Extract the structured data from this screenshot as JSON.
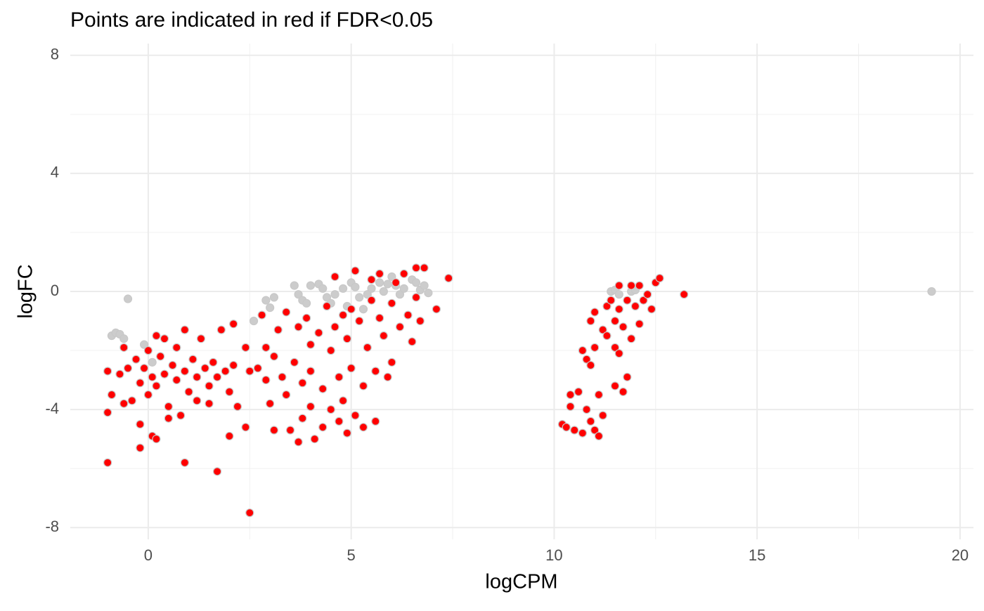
{
  "chart_data": {
    "type": "scatter",
    "title": "Points are indicated in red if FDR<0.05",
    "x_label": "logCPM",
    "y_label": "logFC",
    "xlim": [
      -1.92,
      20.33
    ],
    "ylim": [
      -8.4,
      8.4
    ],
    "xticks": [
      0,
      5,
      10,
      15,
      20
    ],
    "yticks": [
      8,
      4,
      0,
      -4,
      -8
    ],
    "x_minor_grid": [
      2.5,
      7.5,
      12.5,
      17.5
    ],
    "y_minor_grid": [
      6,
      2,
      -2,
      -6
    ],
    "grid": true,
    "series": [
      {
        "color": "#cccccc",
        "x": [
          -0.9,
          -0.8,
          -0.7,
          -0.5,
          -0.6,
          -0.1,
          0.1,
          2.6,
          2.9,
          3.1,
          3.0,
          3.6,
          3.7,
          3.8,
          3.9,
          4.0,
          4.2,
          4.3,
          4.4,
          4.5,
          4.6,
          4.8,
          5.0,
          5.1,
          5.2,
          5.4,
          5.5,
          5.7,
          5.8,
          5.9,
          6.0,
          6.1,
          6.2,
          6.3,
          6.5,
          6.6,
          6.7,
          6.8,
          6.9,
          11.4,
          11.5,
          11.6,
          11.9,
          12.0,
          19.3,
          4.9,
          5.3
        ],
        "values": [
          -1.5,
          -1.4,
          -1.45,
          -0.25,
          -1.6,
          -1.8,
          -2.4,
          -1.0,
          -0.3,
          -0.2,
          -0.55,
          0.2,
          -0.1,
          -0.3,
          -0.4,
          0.2,
          0.25,
          0.1,
          -0.2,
          -0.4,
          -0.1,
          0.1,
          0.3,
          0.15,
          -0.2,
          -0.1,
          0.1,
          0.3,
          0.0,
          0.25,
          0.5,
          0.2,
          -0.1,
          0.1,
          0.4,
          0.3,
          0.05,
          0.2,
          -0.05,
          0.0,
          0.05,
          -0.1,
          0.0,
          0.05,
          0.0,
          -0.5,
          -0.6
        ]
      },
      {
        "color": "#ff0000",
        "x": [
          -1,
          -1,
          -1,
          -0.9,
          -0.7,
          -0.6,
          -0.6,
          -0.5,
          -0.4,
          -0.3,
          -0.2,
          -0.2,
          -0.2,
          -0.1,
          0,
          0,
          0.1,
          0.1,
          0.2,
          0.2,
          0.2,
          0.3,
          0.4,
          0.4,
          0.5,
          0.5,
          0.6,
          0.7,
          0.7,
          0.8,
          0.9,
          0.9,
          0.9,
          1.0,
          1.1,
          1.2,
          1.2,
          1.3,
          1.4,
          1.5,
          1.5,
          1.6,
          1.7,
          1.7,
          1.8,
          1.9,
          2.0,
          2.0,
          2.1,
          2.1,
          2.2,
          2.4,
          2.4,
          2.5,
          2.5,
          2.7,
          2.8,
          2.9,
          2.9,
          3.0,
          3.1,
          3.1,
          3.2,
          3.3,
          3.4,
          3.4,
          3.5,
          3.6,
          3.7,
          3.7,
          3.8,
          3.8,
          3.9,
          4.0,
          4.0,
          4.0,
          4.1,
          4.2,
          4.3,
          4.3,
          4.4,
          4.5,
          4.5,
          4.6,
          4.6,
          4.7,
          4.7,
          4.8,
          4.8,
          4.9,
          4.9,
          5.0,
          5.0,
          5.1,
          5.1,
          5.2,
          5.3,
          5.3,
          5.4,
          5.5,
          5.5,
          5.6,
          5.6,
          5.7,
          5.7,
          5.8,
          5.9,
          6.0,
          6.0,
          6.1,
          6.2,
          6.3,
          6.4,
          6.5,
          6.6,
          6.6,
          6.7,
          6.8,
          7.1,
          7.4,
          10.2,
          10.3,
          10.4,
          10.4,
          10.5,
          10.6,
          10.7,
          10.7,
          10.8,
          10.8,
          10.9,
          10.9,
          10.9,
          11.0,
          11.0,
          11.0,
          11.1,
          11.1,
          11.2,
          11.2,
          11.3,
          11.3,
          11.4,
          11.5,
          11.5,
          11.5,
          11.6,
          11.6,
          11.6,
          11.7,
          11.7,
          11.8,
          11.8,
          11.9,
          11.9,
          12.0,
          12.1,
          12.1,
          12.2,
          12.3,
          12.4,
          12.5,
          12.6,
          13.2
        ],
        "values": [
          -2.7,
          -4.1,
          -5.8,
          -3.5,
          -2.8,
          -1.9,
          -3.8,
          -2.6,
          -3.7,
          -2.3,
          -3.1,
          -4.5,
          -5.3,
          -2.6,
          -2.0,
          -3.5,
          -2.9,
          -4.9,
          -1.5,
          -3.2,
          -5.0,
          -2.2,
          -1.6,
          -2.8,
          -3.9,
          -4.3,
          -2.5,
          -1.9,
          -3.0,
          -4.2,
          -1.3,
          -2.7,
          -5.8,
          -3.4,
          -2.3,
          -2.9,
          -3.7,
          -1.6,
          -2.6,
          -3.2,
          -3.8,
          -2.4,
          -6.1,
          -2.9,
          -1.3,
          -2.7,
          -3.4,
          -4.9,
          -1.1,
          -2.5,
          -3.9,
          -1.9,
          -4.6,
          -2.7,
          -7.5,
          -2.6,
          -0.8,
          -3.0,
          -1.9,
          -3.8,
          -2.2,
          -4.7,
          -1.3,
          -2.9,
          -0.7,
          -3.5,
          -4.7,
          -2.4,
          -1.2,
          -5.1,
          -3.1,
          -4.3,
          -0.9,
          -1.8,
          -2.7,
          -3.9,
          -5.0,
          -1.4,
          -3.3,
          -4.6,
          -0.5,
          -2.0,
          -4.0,
          -1.2,
          0.5,
          -2.9,
          -4.4,
          -0.8,
          -3.7,
          -1.6,
          -4.8,
          -0.6,
          -2.6,
          -4.2,
          0.7,
          -1.0,
          -3.2,
          -4.6,
          -1.9,
          -0.3,
          0.4,
          -2.7,
          -4.4,
          0.6,
          -0.9,
          -1.5,
          -2.9,
          -0.4,
          -2.4,
          0.3,
          -1.2,
          0.6,
          -0.8,
          -1.7,
          0.8,
          -0.2,
          -1.0,
          0.8,
          -0.6,
          0.45,
          -4.5,
          -4.6,
          -3.5,
          -3.9,
          -4.7,
          -3.4,
          -4.8,
          -2.0,
          -2.3,
          -4.0,
          -1.0,
          -2.5,
          -4.4,
          -0.7,
          -1.9,
          -4.7,
          -3.5,
          -4.9,
          -1.3,
          -4.2,
          -0.5,
          -1.5,
          -0.3,
          -1.0,
          -1.9,
          -3.2,
          0.2,
          -0.6,
          -2.1,
          -1.2,
          -3.4,
          -0.3,
          -2.9,
          0.2,
          -1.6,
          -0.5,
          0.2,
          -1.1,
          -0.3,
          -0.1,
          -0.6,
          0.3,
          0.45,
          -0.1
        ]
      }
    ]
  }
}
